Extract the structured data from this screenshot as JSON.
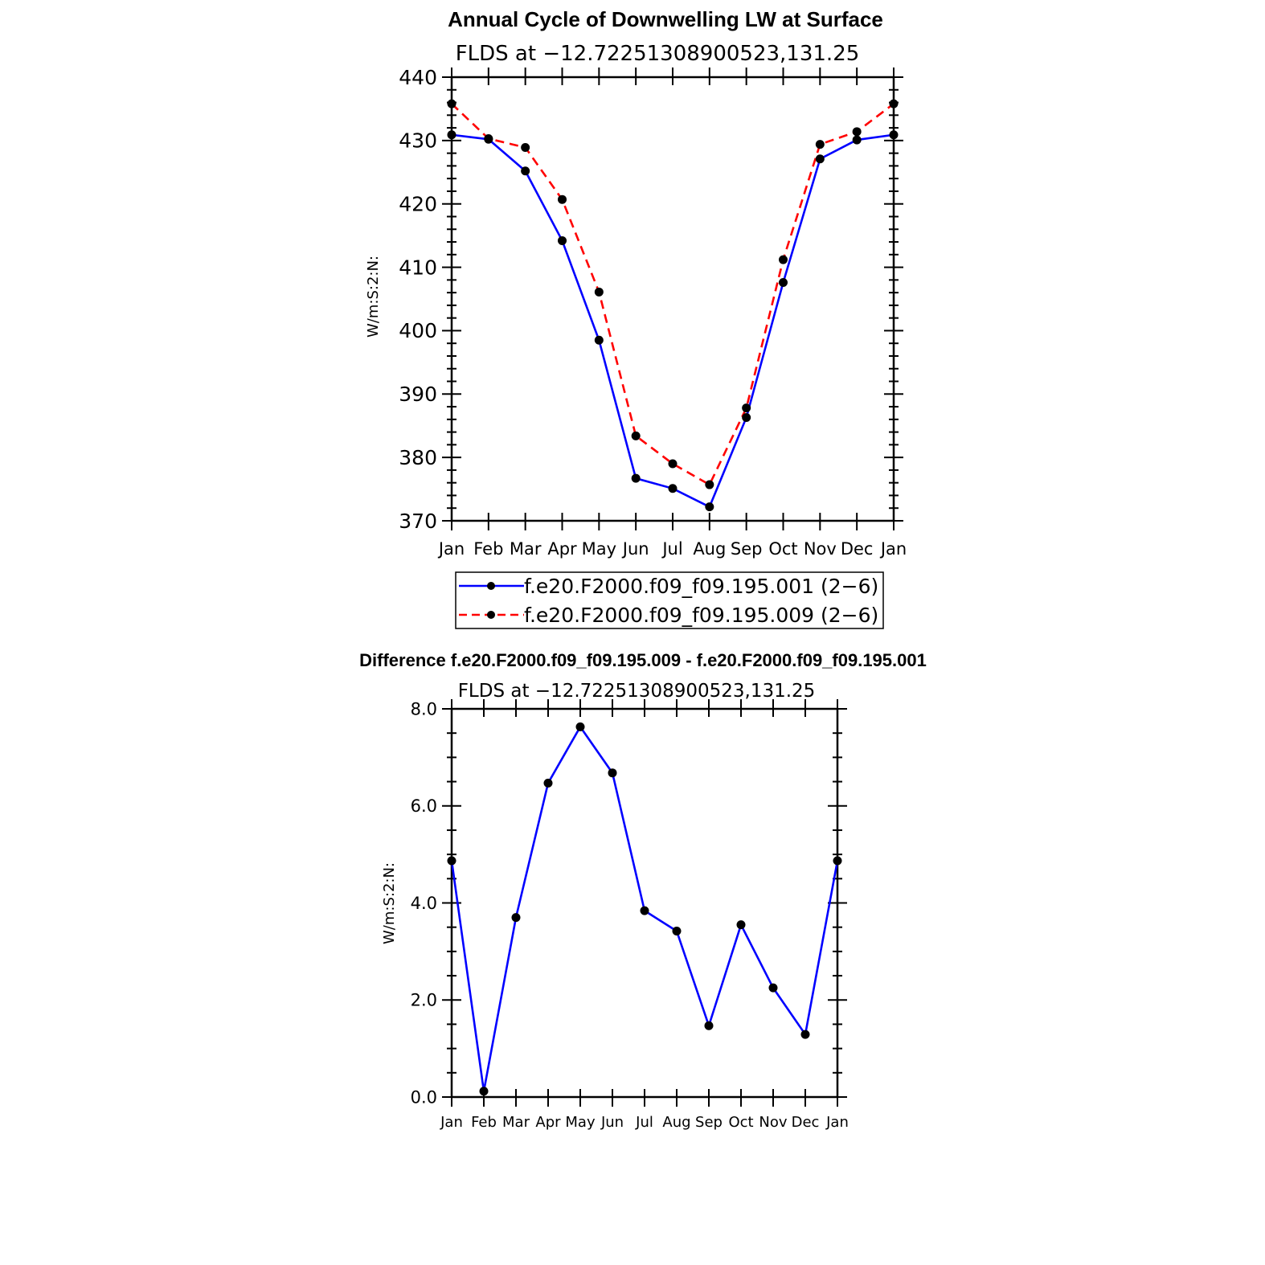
{
  "colors": {
    "series_blue": "#0000ff",
    "series_red": "#ff0000",
    "marker": "#000000",
    "axis": "#000000"
  },
  "chart_data": [
    {
      "type": "line",
      "title": "Annual Cycle of Downwelling LW at Surface",
      "subtitle": "FLDS at −12.72251308900523,131.25",
      "ylabel": "W/m:S:2:N:",
      "xlabel": "",
      "ylim": [
        370,
        440
      ],
      "yticks": [
        370,
        380,
        390,
        400,
        410,
        420,
        430,
        440
      ],
      "ytick_labels": [
        "370",
        "380",
        "390",
        "400",
        "410",
        "420",
        "430",
        "440"
      ],
      "categories": [
        "Jan",
        "Feb",
        "Mar",
        "Apr",
        "May",
        "Jun",
        "Jul",
        "Aug",
        "Sep",
        "Oct",
        "Nov",
        "Dec",
        "Jan"
      ],
      "series": [
        {
          "name": "f.e20.F2000.f09_f09.195.001 (2−6)",
          "style": "solid",
          "color": "#0000ff",
          "values": [
            430.9,
            430.2,
            425.2,
            414.2,
            398.5,
            376.7,
            375.1,
            372.2,
            386.3,
            407.6,
            427.1,
            430.1,
            430.9
          ]
        },
        {
          "name": "f.e20.F2000.f09_f09.195.009 (2−6)",
          "style": "dashed",
          "color": "#ff0000",
          "values": [
            435.8,
            430.3,
            428.9,
            420.7,
            406.1,
            383.4,
            379.0,
            375.7,
            387.8,
            411.2,
            429.4,
            431.4,
            435.8
          ]
        }
      ],
      "legend_position": "below"
    },
    {
      "type": "line",
      "title": "Difference f.e20.F2000.f09_f09.195.009 - f.e20.F2000.f09_f09.195.001",
      "subtitle": "FLDS at −12.72251308900523,131.25",
      "ylabel": "W/m:S:2:N:",
      "xlabel": "",
      "ylim": [
        0,
        8
      ],
      "yticks": [
        0,
        2,
        4,
        6,
        8
      ],
      "ytick_labels": [
        "0.0",
        "2.0",
        "4.0",
        "6.0",
        "8.0"
      ],
      "categories": [
        "Jan",
        "Feb",
        "Mar",
        "Apr",
        "May",
        "Jun",
        "Jul",
        "Aug",
        "Sep",
        "Oct",
        "Nov",
        "Dec",
        "Jan"
      ],
      "series": [
        {
          "name": "difference",
          "style": "solid",
          "color": "#0000ff",
          "values": [
            4.87,
            0.12,
            3.7,
            6.47,
            7.63,
            6.68,
            3.84,
            3.42,
            1.47,
            3.55,
            2.25,
            1.29,
            4.87
          ]
        }
      ]
    }
  ]
}
